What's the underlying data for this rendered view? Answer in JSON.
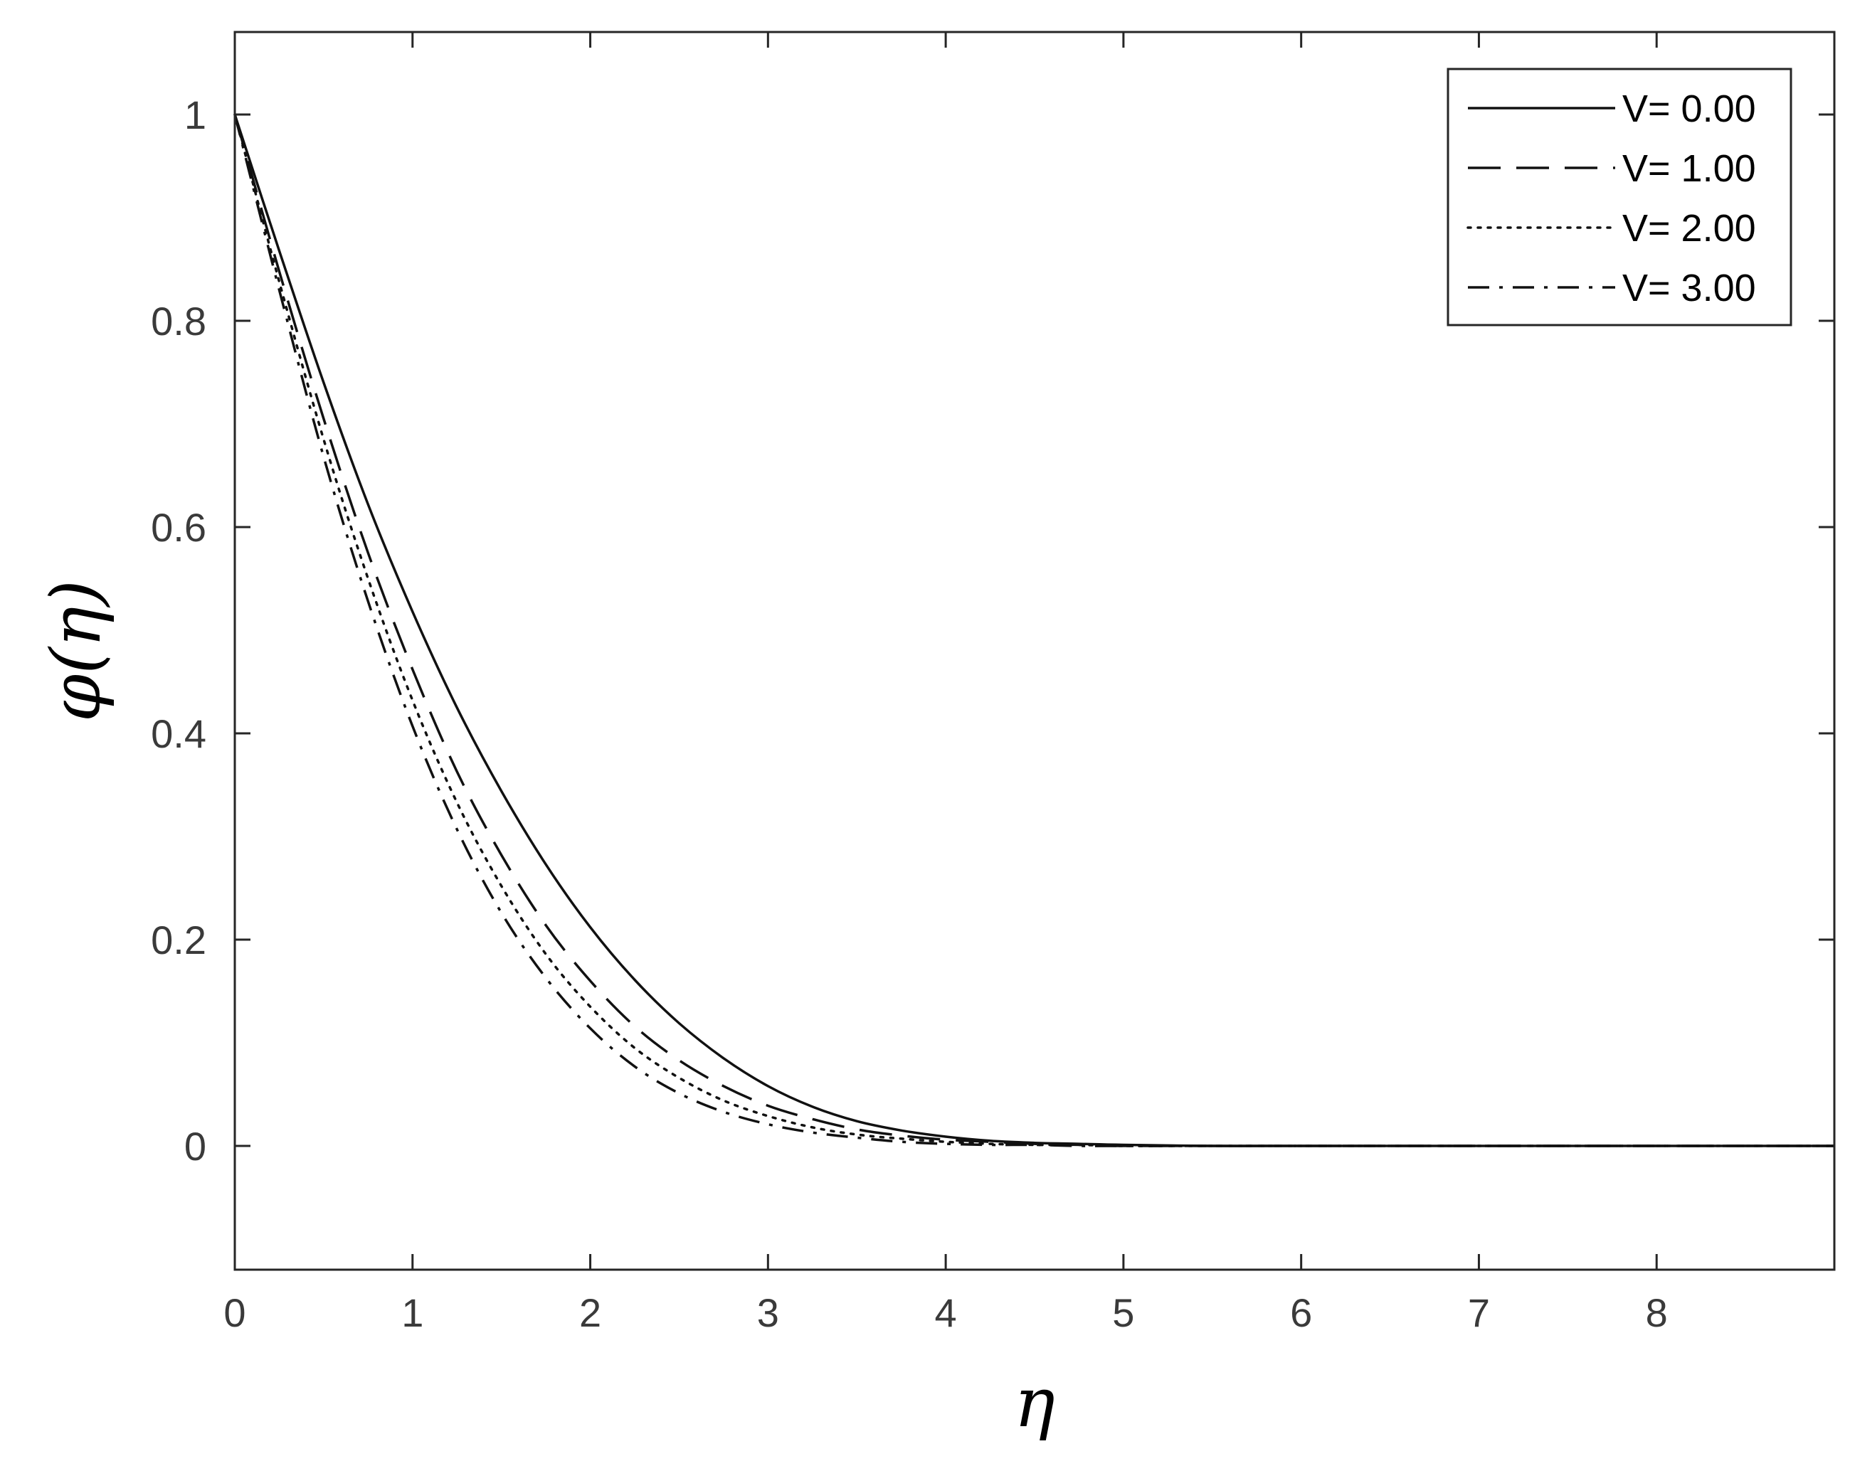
{
  "chart_data": {
    "type": "line",
    "title": "",
    "xlabel": "η",
    "ylabel": "φ(η)",
    "xlim": [
      0,
      9
    ],
    "ylim": [
      -0.12,
      1.08
    ],
    "x_ticks": [
      "0",
      "1",
      "2",
      "3",
      "4",
      "5",
      "6",
      "7",
      "8"
    ],
    "x_tick_values": [
      0,
      1,
      2,
      3,
      4,
      5,
      6,
      7,
      8
    ],
    "y_ticks": [
      "0",
      "0.2",
      "0.4",
      "0.6",
      "0.8",
      "1"
    ],
    "y_tick_values": [
      0,
      0.2,
      0.4,
      0.6,
      0.8,
      1.0
    ],
    "grid": false,
    "legend_position": "top-right",
    "x": [
      0,
      0.25,
      0.5,
      0.75,
      1.0,
      1.25,
      1.5,
      1.75,
      2.0,
      2.25,
      2.5,
      2.75,
      3.0,
      3.25,
      3.5,
      3.75,
      4.0,
      4.25,
      4.5,
      4.75,
      5.0,
      5.5,
      6.0,
      7.0,
      8.0,
      9.0
    ],
    "series": [
      {
        "name": "V= 0.00",
        "style": "solid",
        "values": [
          1.0,
          0.868,
          0.74,
          0.622,
          0.518,
          0.425,
          0.344,
          0.273,
          0.212,
          0.161,
          0.119,
          0.085,
          0.058,
          0.038,
          0.024,
          0.015,
          0.009,
          0.005,
          0.003,
          0.002,
          0.001,
          0.0,
          0.0,
          0.0,
          0.0,
          0.0
        ]
      },
      {
        "name": "V= 1.00",
        "style": "dashed",
        "values": [
          1.0,
          0.848,
          0.705,
          0.575,
          0.462,
          0.363,
          0.282,
          0.214,
          0.16,
          0.116,
          0.083,
          0.058,
          0.039,
          0.026,
          0.016,
          0.01,
          0.006,
          0.004,
          0.002,
          0.001,
          0.0,
          0.0,
          0.0,
          0.0,
          0.0,
          0.0
        ]
      },
      {
        "name": "V= 2.00",
        "style": "dotted",
        "values": [
          1.0,
          0.838,
          0.685,
          0.55,
          0.432,
          0.333,
          0.252,
          0.186,
          0.135,
          0.095,
          0.066,
          0.044,
          0.029,
          0.018,
          0.011,
          0.007,
          0.004,
          0.002,
          0.001,
          0.001,
          0.0,
          0.0,
          0.0,
          0.0,
          0.0,
          0.0
        ]
      },
      {
        "name": "V= 3.00",
        "style": "dashdot",
        "values": [
          1.0,
          0.83,
          0.668,
          0.528,
          0.407,
          0.307,
          0.226,
          0.163,
          0.114,
          0.077,
          0.051,
          0.033,
          0.021,
          0.013,
          0.008,
          0.004,
          0.002,
          0.001,
          0.001,
          0.0,
          0.0,
          0.0,
          0.0,
          0.0,
          0.0,
          0.0
        ]
      }
    ]
  }
}
